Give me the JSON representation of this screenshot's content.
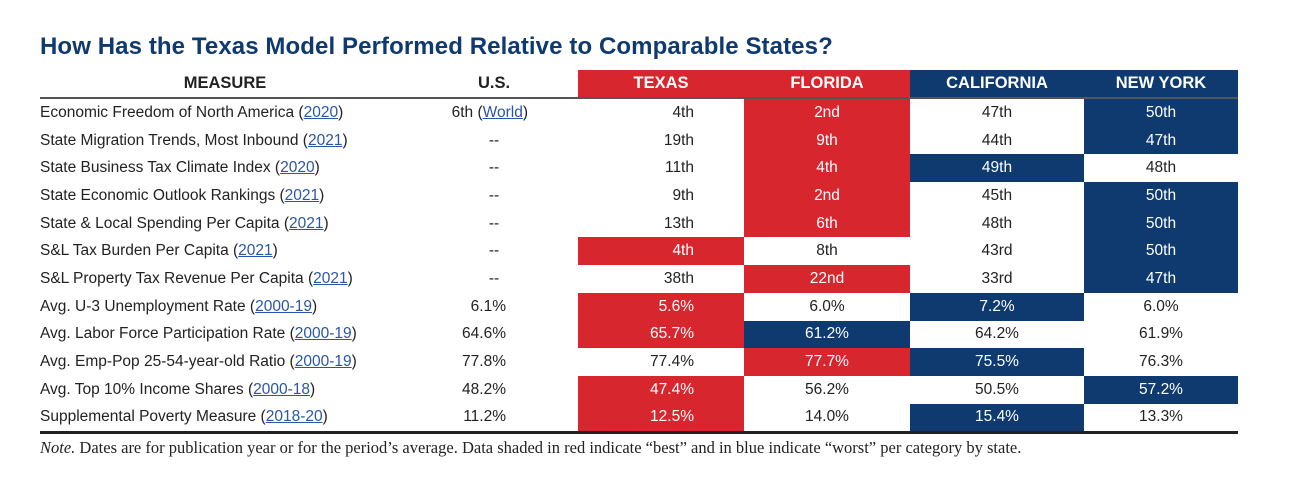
{
  "title": "How Has the Texas Model Performed Relative to Comparable States?",
  "colors": {
    "best": "#d8262f",
    "worst": "#0e3a70",
    "link": "#2a56a6"
  },
  "headers": {
    "measure": "MEASURE",
    "us": "U.S.",
    "texas": "TEXAS",
    "florida": "FLORIDA",
    "california": "CALIFORNIA",
    "new_york": "NEW YORK"
  },
  "rows": [
    {
      "measure": "Economic Freedom of North America (",
      "year": "2020",
      "close": ")",
      "us": "6th (",
      "us_link": "World",
      "us_close": ")",
      "texas": "4th",
      "florida": "2nd",
      "california": "47th",
      "new_york": "50th",
      "shade": {
        "texas": "",
        "florida": "best",
        "california": "",
        "new_york": "worst"
      }
    },
    {
      "measure": "State Migration Trends, Most Inbound (",
      "year": "2021",
      "close": ")",
      "us": "--",
      "texas": "19th",
      "florida": "9th",
      "california": "44th",
      "new_york": "47th",
      "shade": {
        "texas": "",
        "florida": "best",
        "california": "",
        "new_york": "worst"
      }
    },
    {
      "measure": "State Business Tax Climate Index (",
      "year": "2020",
      "close": ")",
      "us": "--",
      "texas": "11th",
      "florida": "4th",
      "california": "49th",
      "new_york": "48th",
      "shade": {
        "texas": "",
        "florida": "best",
        "california": "worst",
        "new_york": ""
      }
    },
    {
      "measure": "State Economic Outlook Rankings (",
      "year": "2021",
      "close": ")",
      "us": "--",
      "texas": "9th",
      "florida": "2nd",
      "california": "45th",
      "new_york": "50th",
      "shade": {
        "texas": "",
        "florida": "best",
        "california": "",
        "new_york": "worst"
      }
    },
    {
      "measure": "State & Local Spending Per Capita (",
      "year": "2021",
      "close": ")",
      "us": "--",
      "texas": "13th",
      "florida": "6th",
      "california": "48th",
      "new_york": "50th",
      "shade": {
        "texas": "",
        "florida": "best",
        "california": "",
        "new_york": "worst"
      }
    },
    {
      "measure": "S&L Tax Burden Per Capita (",
      "year": "2021",
      "close": ")",
      "us": "--",
      "texas": "4th",
      "florida": "8th",
      "california": "43rd",
      "new_york": "50th",
      "shade": {
        "texas": "best",
        "florida": "",
        "california": "",
        "new_york": "worst"
      }
    },
    {
      "measure": "S&L Property Tax Revenue Per Capita (",
      "year": "2021",
      "close": ")",
      "us": "--",
      "texas": "38th",
      "florida": "22nd",
      "california": "33rd",
      "new_york": "47th",
      "shade": {
        "texas": "",
        "florida": "best",
        "california": "",
        "new_york": "worst"
      }
    },
    {
      "measure": "Avg. U-3 Unemployment Rate (",
      "year": "2000-19",
      "close": ")",
      "us": "6.1%",
      "texas": "5.6%",
      "florida": "6.0%",
      "california": "7.2%",
      "new_york": "6.0%",
      "shade": {
        "texas": "best",
        "florida": "",
        "california": "worst",
        "new_york": ""
      }
    },
    {
      "measure": "Avg. Labor Force Participation Rate (",
      "year": "2000-19",
      "close": ")",
      "us": "64.6%",
      "texas": "65.7%",
      "florida": "61.2%",
      "california": "64.2%",
      "new_york": "61.9%",
      "shade": {
        "texas": "best",
        "florida": "worst",
        "california": "",
        "new_york": ""
      }
    },
    {
      "measure": "Avg. Emp-Pop 25-54-year-old Ratio (",
      "year": "2000-19",
      "close": ")",
      "us": "77.8%",
      "texas": "77.4%",
      "florida": "77.7%",
      "california": "75.5%",
      "new_york": "76.3%",
      "shade": {
        "texas": "",
        "florida": "best",
        "california": "worst",
        "new_york": ""
      }
    },
    {
      "measure": "Avg. Top 10% Income Shares (",
      "year": "2000-18",
      "close": ")",
      "us": "48.2%",
      "texas": "47.4%",
      "florida": "56.2%",
      "california": "50.5%",
      "new_york": "57.2%",
      "shade": {
        "texas": "best",
        "florida": "",
        "california": "",
        "new_york": "worst"
      }
    },
    {
      "measure": "Supplemental Poverty Measure (",
      "year": "2018-20",
      "close": ")",
      "us": "11.2%",
      "texas": "12.5%",
      "florida": "14.0%",
      "california": "15.4%",
      "new_york": "13.3%",
      "shade": {
        "texas": "best",
        "florida": "",
        "california": "worst",
        "new_york": ""
      }
    }
  ],
  "note": {
    "label": "Note.",
    "text": " Dates are for publication year or for the period’s average. Data shaded in red indicate “best” and in blue indicate “worst” per category by state."
  }
}
